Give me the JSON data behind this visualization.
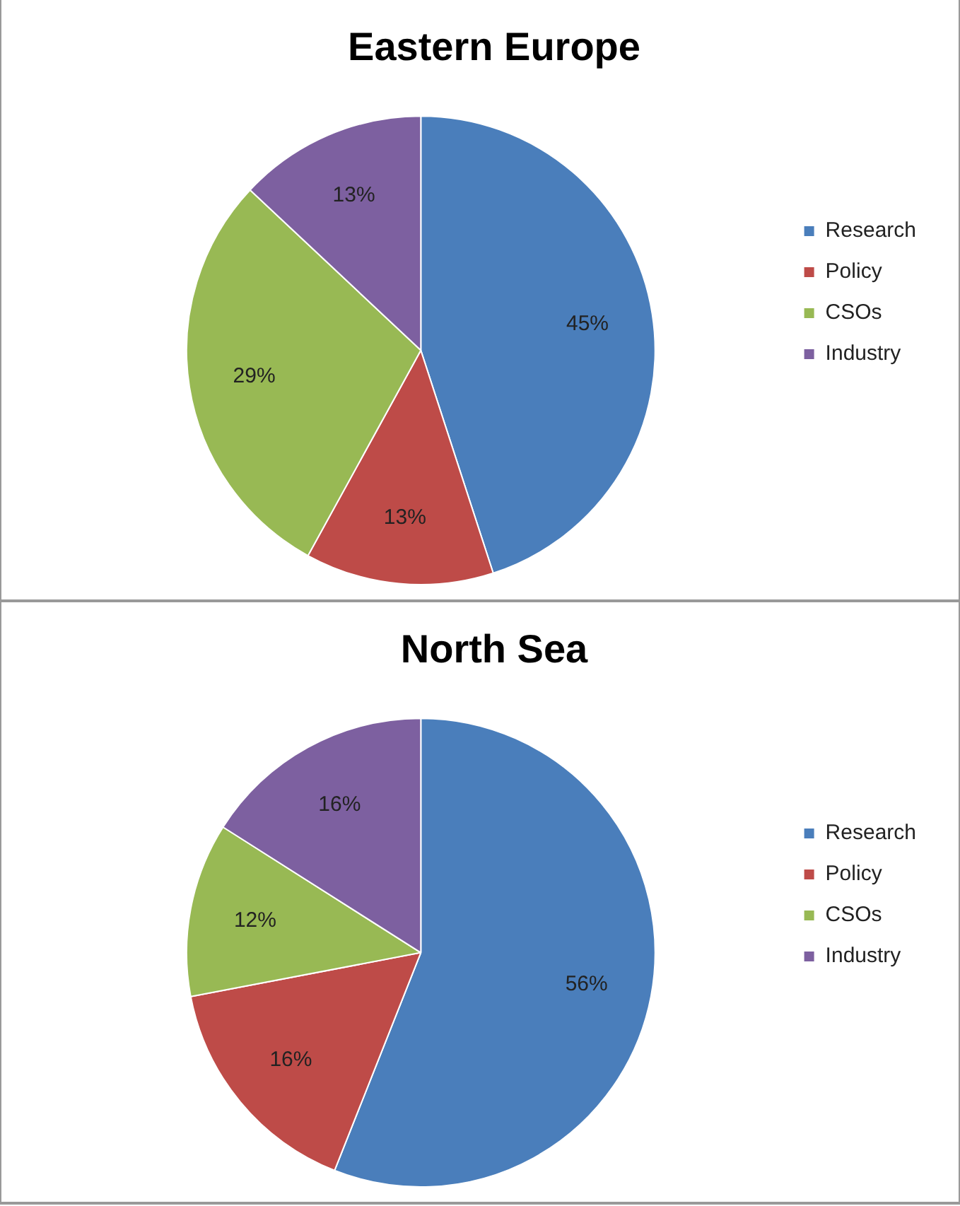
{
  "chart_data": [
    {
      "type": "pie",
      "title": "Eastern Europe",
      "categories": [
        "Research",
        "Policy",
        "CSOs",
        "Industry"
      ],
      "values": [
        45,
        13,
        29,
        13
      ],
      "colors": [
        "#4a7ebb",
        "#be4b48",
        "#98b954",
        "#7d60a0"
      ],
      "value_labels": [
        "45%",
        "13%",
        "29%",
        "13%"
      ],
      "legend": "right"
    },
    {
      "type": "pie",
      "title": "North Sea",
      "categories": [
        "Research",
        "Policy",
        "CSOs",
        "Industry"
      ],
      "values": [
        56,
        16,
        12,
        16
      ],
      "colors": [
        "#4a7ebb",
        "#be4b48",
        "#98b954",
        "#7d60a0"
      ],
      "value_labels": [
        "56%",
        "16%",
        "12%",
        "16%"
      ],
      "legend": "right"
    }
  ]
}
